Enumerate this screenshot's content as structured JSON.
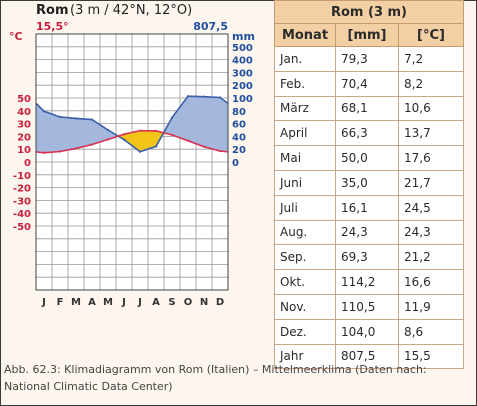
{
  "chart_data": {
    "type": "climate-diagram",
    "title_main": "Rom",
    "title_detail": "(3 m / 42°N, 12°O)",
    "temperature_label": "15,5°",
    "precipitation_label": "807,5",
    "temp_unit": "°C",
    "precip_unit": "mm",
    "months": [
      "J",
      "F",
      "M",
      "A",
      "M",
      "J",
      "J",
      "A",
      "S",
      "O",
      "N",
      "D"
    ],
    "temp_ticks": [
      "50",
      "40",
      "30",
      "20",
      "10",
      "0",
      "-10",
      "-20",
      "-30",
      "-40",
      "-50"
    ],
    "precip_ticks": [
      "500",
      "400",
      "300",
      "200",
      "100",
      "80",
      "60",
      "40",
      "20",
      "0"
    ],
    "temperature_c": [
      7.2,
      8.2,
      10.6,
      13.7,
      17.6,
      21.7,
      24.5,
      24.3,
      21.2,
      16.6,
      11.9,
      8.6
    ],
    "precipitation_mm": [
      79.3,
      70.4,
      68.1,
      66.3,
      50.0,
      35.0,
      16.1,
      24.3,
      69.3,
      114.2,
      110.5,
      104.0
    ],
    "temp_range": [
      -50,
      50
    ],
    "precip_range": [
      0,
      500
    ],
    "colors": {
      "temperature_line": "#d8304f",
      "precipitation_line": "#3b5fa6",
      "humid_fill": "#a4b8dd",
      "arid_fill": "#f2c418",
      "temp_axis": "#c8203c",
      "precip_axis": "#1f4f9e",
      "grid": "#999999"
    }
  },
  "table": {
    "title": "Rom (3 m)",
    "headers": [
      "Monat",
      "[mm]",
      "[°C]"
    ],
    "rows": [
      [
        "Jan.",
        "79,3",
        "7,2"
      ],
      [
        "Feb.",
        "70,4",
        "8,2"
      ],
      [
        "März",
        "68,1",
        "10,6"
      ],
      [
        "April",
        "66,3",
        "13,7"
      ],
      [
        "Mai",
        "50,0",
        "17,6"
      ],
      [
        "Juni",
        "35,0",
        "21,7"
      ],
      [
        "Juli",
        "16,1",
        "24,5"
      ],
      [
        "Aug.",
        "24,3",
        "24,3"
      ],
      [
        "Sep.",
        "69,3",
        "21,2"
      ],
      [
        "Okt.",
        "114,2",
        "16,6"
      ],
      [
        "Nov.",
        "110,5",
        "11,9"
      ],
      [
        "Dez.",
        "104,0",
        "8,6"
      ],
      [
        "Jahr",
        "807,5",
        "15,5"
      ]
    ]
  },
  "caption": "Abb. 62.3: Klimadiagramm von Rom (Italien) – Mittelmeerklima (Daten nach: National Climatic Data Center)"
}
